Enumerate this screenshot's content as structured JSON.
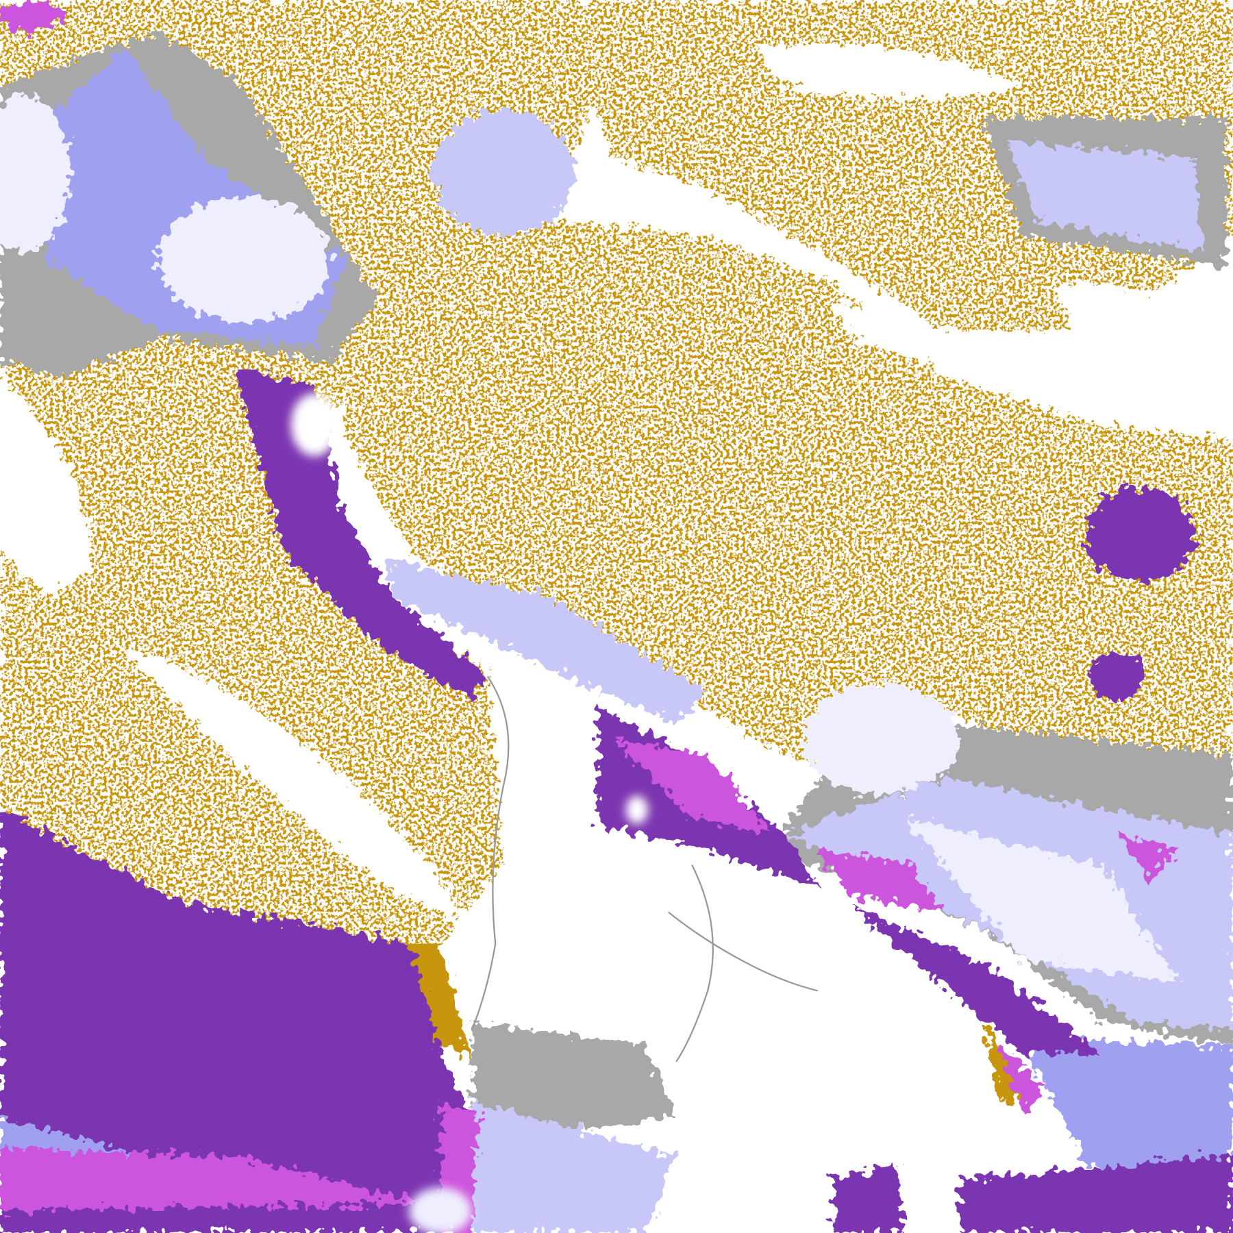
{
  "map": {
    "type": "false-color satellite classification",
    "colors": {
      "background": "#ffffff",
      "gold": "#c8960a",
      "gold_light": "#dcaa00",
      "purple": "#7b35b0",
      "magenta": "#cc55dd",
      "lavender": "#a0a0f0",
      "light_lavender": "#c8c8f8",
      "pale": "#eeeeff",
      "gray": "#a8a8a8",
      "dark_gray": "#888888"
    }
  }
}
